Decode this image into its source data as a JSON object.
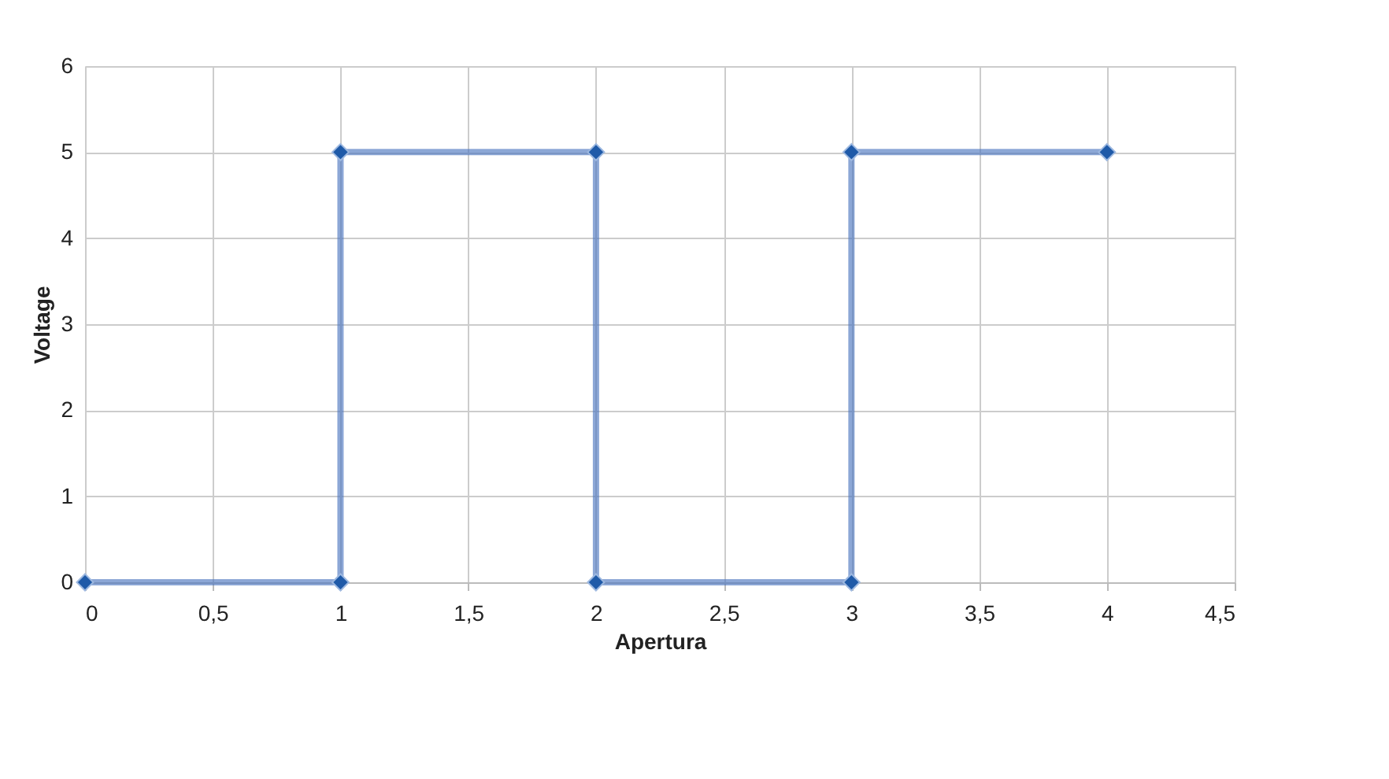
{
  "chart_data": {
    "type": "line",
    "xlabel": "Apertura",
    "ylabel": "Voltage",
    "x": [
      0,
      1,
      1,
      2,
      2,
      3,
      3,
      4
    ],
    "series": [
      {
        "color": "#4f78c0",
        "values": [
          0,
          0,
          5,
          5,
          0,
          0,
          5,
          5
        ]
      }
    ],
    "xlim": [
      0,
      4.5
    ],
    "ylim": [
      0,
      6
    ],
    "xticks": [
      0,
      {
        "value": 0.5,
        "label": "0,5"
      },
      1,
      {
        "value": 1.5,
        "label": "1,5"
      },
      2,
      {
        "value": 2.5,
        "label": "2,5"
      },
      3,
      {
        "value": 3.5,
        "label": "3,5"
      },
      4,
      {
        "value": 4.5,
        "label": "4,5"
      }
    ],
    "yticks": [
      0,
      1,
      2,
      3,
      4,
      5,
      6
    ],
    "grid": true,
    "marker": "diamond",
    "line_style": "solid"
  }
}
